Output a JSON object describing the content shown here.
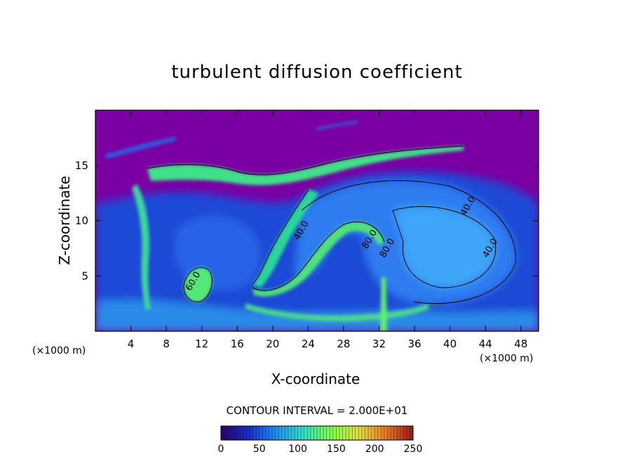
{
  "chart_data": {
    "type": "heatmap",
    "title": "turbulent diffusion coefficient",
    "xlabel": "X-coordinate",
    "ylabel": "Z-coordinate",
    "x_unit": "(×1000 m)",
    "y_unit": "(×1000 m)",
    "xlim": [
      0,
      50
    ],
    "ylim": [
      0,
      20
    ],
    "x_ticks": [
      4,
      8,
      12,
      16,
      20,
      24,
      28,
      32,
      36,
      40,
      44,
      48
    ],
    "y_ticks": [
      5,
      10,
      15
    ],
    "contour_interval": "CONTOUR INTERVAL = 2.000E+01",
    "colorbar": {
      "range": [
        0,
        250
      ],
      "ticks": [
        0,
        50,
        100,
        150,
        200,
        250
      ],
      "colors": [
        "#2b0066",
        "#1a2dcc",
        "#1f8ff2",
        "#33e0c8",
        "#7dff4d",
        "#e0e040",
        "#e87a2a",
        "#a01818"
      ]
    },
    "contour_labels": [
      {
        "text": "40.0",
        "x": 42.3,
        "y": 11.2
      },
      {
        "text": "40.0",
        "x": 44.8,
        "y": 7.4
      },
      {
        "text": "80.0",
        "x": 31.2,
        "y": 8.2
      },
      {
        "text": "80.0",
        "x": 33.2,
        "y": 7.4
      },
      {
        "text": "40.0",
        "x": 23.5,
        "y": 9.0
      },
      {
        "text": "60.0",
        "x": 11.3,
        "y": 4.4
      }
    ],
    "colors": {
      "background": "#7a00a3",
      "field_low": "#1d3fd8",
      "field_mid": "#2ea7ff",
      "field_high": "#6cff5a"
    }
  }
}
